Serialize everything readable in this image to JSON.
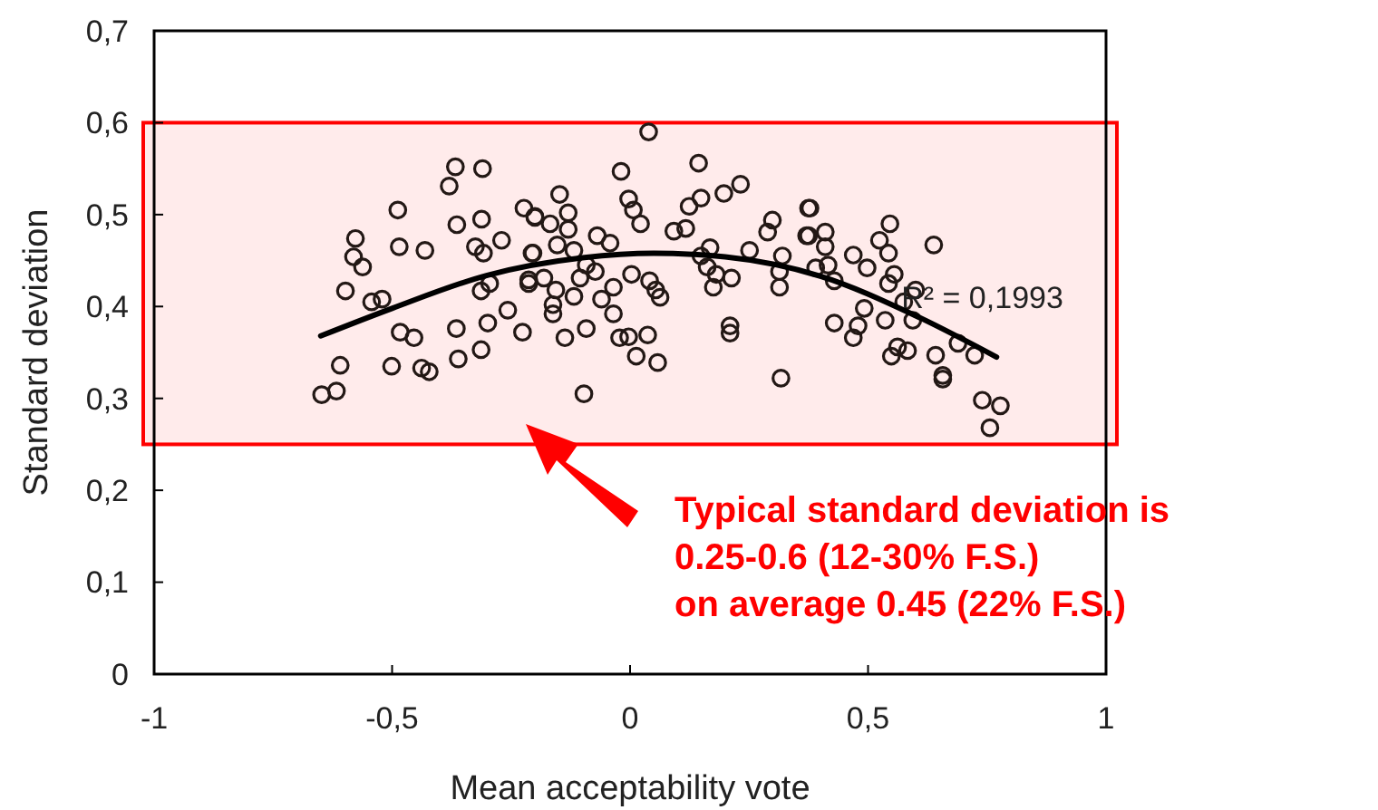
{
  "chart_data": {
    "type": "scatter",
    "xlabel": "Mean acceptability vote",
    "ylabel": "Standard deviation",
    "xlim": [
      -1,
      1
    ],
    "ylim": [
      0,
      0.7
    ],
    "xticks": [
      -1,
      {
        "value": -0.5,
        "label": "-0,5"
      },
      0,
      {
        "value": 0.5,
        "label": "0,5"
      },
      1
    ],
    "yticks": [
      0,
      {
        "value": 0.1,
        "label": "0,1"
      },
      {
        "value": 0.2,
        "label": "0,2"
      },
      {
        "value": 0.3,
        "label": "0,3"
      },
      {
        "value": 0.4,
        "label": "0,4"
      },
      {
        "value": 0.5,
        "label": "0,5"
      },
      {
        "value": 0.6,
        "label": "0,6"
      },
      {
        "value": 0.7,
        "label": "0,7"
      }
    ],
    "grid": false,
    "bands": [
      {
        "axis": "y",
        "from": 0.25,
        "to": 0.6,
        "color": "#ff0000"
      }
    ],
    "annotations": [
      {
        "text": "R² = 0,1993",
        "x": 0.57,
        "y": 0.41
      },
      "Typical standard deviation is\n0.25-0.6 (12-30% F.S.)\non average 0.45 (22% F.S.)"
    ],
    "series": [
      {
        "marker": "circle",
        "color": "#231815",
        "x": [
          -0.367,
          -0.31,
          -0.38,
          -0.488,
          -0.364,
          -0.312,
          -0.577,
          -0.485,
          -0.431,
          -0.27,
          -0.325,
          -0.308,
          -0.223,
          -0.2,
          -0.581,
          -0.562,
          -0.598,
          -0.543,
          -0.521,
          -0.313,
          -0.295,
          -0.257,
          -0.204,
          -0.213,
          -0.226,
          -0.483,
          -0.454,
          -0.365,
          -0.299,
          -0.609,
          -0.501,
          -0.438,
          -0.422,
          -0.361,
          -0.313,
          -0.648,
          -0.617,
          0.039,
          -0.019,
          0.144,
          0.232,
          0.197,
          0.149,
          0.124,
          -0.148,
          -0.003,
          0.007,
          0.022,
          -0.13,
          -0.2,
          -0.168,
          -0.13,
          -0.069,
          -0.042,
          0.092,
          0.117,
          0.299,
          0.289,
          0.375,
          0.371,
          -0.153,
          -0.206,
          -0.118,
          -0.092,
          -0.073,
          -0.105,
          -0.181,
          -0.213,
          -0.156,
          -0.118,
          -0.162,
          -0.162,
          -0.06,
          -0.035,
          -0.035,
          0.003,
          0.041,
          0.054,
          0.063,
          -0.092,
          -0.137,
          -0.022,
          -0.003,
          0.037,
          0.013,
          0.058,
          -0.097,
          0.149,
          0.168,
          0.162,
          0.181,
          0.175,
          0.213,
          0.251,
          0.32,
          0.314,
          0.314,
          0.21,
          0.21,
          0.317,
          0.378,
          0.375,
          0.41,
          0.41,
          0.416,
          0.39,
          0.429,
          0.546,
          0.524,
          0.543,
          0.469,
          0.498,
          0.555,
          0.543,
          0.638,
          0.6,
          0.492,
          0.429,
          0.479,
          0.469,
          0.536,
          0.575,
          0.594,
          0.562,
          0.549,
          0.583,
          0.642,
          0.689,
          0.724,
          0.657,
          0.657,
          0.74,
          0.778,
          0.756
        ],
        "values": [
          0.552,
          0.55,
          0.531,
          0.505,
          0.489,
          0.495,
          0.474,
          0.465,
          0.461,
          0.472,
          0.465,
          0.458,
          0.507,
          0.498,
          0.454,
          0.443,
          0.417,
          0.405,
          0.408,
          0.417,
          0.425,
          0.396,
          0.458,
          0.429,
          0.372,
          0.372,
          0.366,
          0.376,
          0.382,
          0.336,
          0.335,
          0.333,
          0.329,
          0.343,
          0.353,
          0.304,
          0.308,
          0.59,
          0.547,
          0.556,
          0.533,
          0.523,
          0.518,
          0.509,
          0.522,
          0.517,
          0.505,
          0.49,
          0.502,
          0.497,
          0.49,
          0.484,
          0.477,
          0.469,
          0.482,
          0.485,
          0.494,
          0.481,
          0.507,
          0.477,
          0.467,
          0.458,
          0.461,
          0.445,
          0.438,
          0.431,
          0.431,
          0.425,
          0.418,
          0.411,
          0.402,
          0.392,
          0.408,
          0.421,
          0.392,
          0.435,
          0.428,
          0.418,
          0.41,
          0.376,
          0.366,
          0.366,
          0.367,
          0.369,
          0.346,
          0.339,
          0.305,
          0.455,
          0.464,
          0.443,
          0.435,
          0.421,
          0.431,
          0.461,
          0.455,
          0.438,
          0.421,
          0.379,
          0.371,
          0.322,
          0.507,
          0.477,
          0.481,
          0.465,
          0.445,
          0.442,
          0.428,
          0.49,
          0.472,
          0.458,
          0.456,
          0.442,
          0.435,
          0.425,
          0.467,
          0.418,
          0.398,
          0.382,
          0.379,
          0.366,
          0.385,
          0.405,
          0.385,
          0.356,
          0.346,
          0.352,
          0.347,
          0.36,
          0.347,
          0.325,
          0.321,
          0.298,
          0.292,
          0.268
        ]
      },
      {
        "type": "line",
        "color": "#000000",
        "x": [
          -0.65,
          -0.5,
          -0.3,
          -0.1,
          0.05,
          0.2,
          0.4,
          0.6,
          0.77
        ],
        "values": [
          0.368,
          0.398,
          0.434,
          0.453,
          0.458,
          0.454,
          0.433,
          0.39,
          0.345
        ]
      }
    ]
  }
}
